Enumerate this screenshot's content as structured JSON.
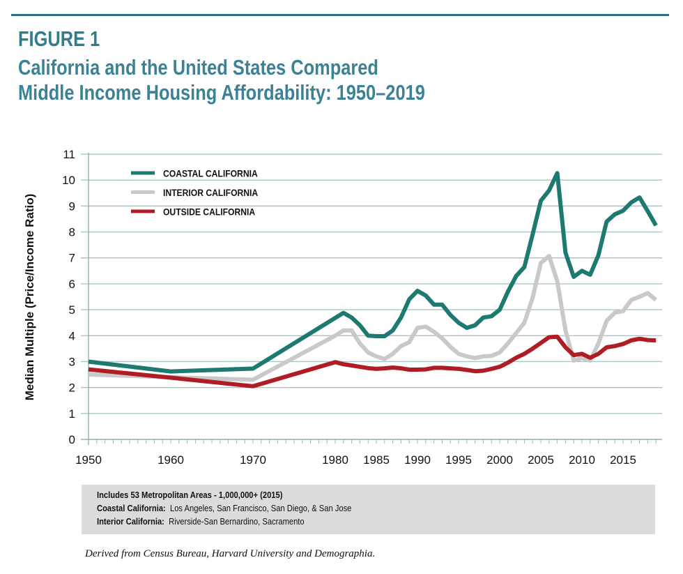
{
  "header": {
    "figure_label": "FIGURE 1",
    "title_line1": "California and the United States Compared",
    "title_line2": "Middle Income Housing Affordability: 1950–2019"
  },
  "colors": {
    "title": "#2f7d8e",
    "rule": "#2d6f80",
    "gridline": "#a9c6c6",
    "coastal": "#1e7a70",
    "interior": "#c9c9c9",
    "outside": "#b01c24"
  },
  "chart_data": {
    "type": "line",
    "title": "California and the United States Compared — Middle Income Housing Affordability: 1950–2019",
    "xlabel": "",
    "ylabel": "Median Multiple (Price/Income Ratio)",
    "ylim": [
      0,
      11
    ],
    "xlim": [
      1950,
      2019
    ],
    "yticks": [
      0,
      1,
      2,
      3,
      4,
      5,
      6,
      7,
      8,
      9,
      10,
      11
    ],
    "xtick_labels": [
      "1950",
      "1960",
      "1970",
      "1980",
      "1985",
      "1990",
      "1995",
      "2000",
      "2005",
      "2010",
      "2015"
    ],
    "grid": true,
    "legend_position": "top-left",
    "series": [
      {
        "name": "COASTAL CALIFORNIA",
        "color": "#1e7a70",
        "x": [
          1950,
          1960,
          1970,
          1981,
          1982,
          1983,
          1984,
          1985,
          1986,
          1987,
          1988,
          1989,
          1990,
          1991,
          1992,
          1993,
          1994,
          1995,
          1996,
          1997,
          1998,
          1999,
          2000,
          2001,
          2002,
          2003,
          2004,
          2005,
          2006,
          2007,
          2008,
          2009,
          2010,
          2011,
          2012,
          2013,
          2014,
          2015,
          2016,
          2017,
          2018,
          2019
        ],
        "values": [
          3.0,
          2.62,
          2.73,
          4.88,
          4.7,
          4.4,
          4.0,
          3.98,
          3.98,
          4.2,
          4.7,
          5.4,
          5.73,
          5.55,
          5.2,
          5.2,
          4.8,
          4.5,
          4.3,
          4.4,
          4.7,
          4.75,
          5.0,
          5.7,
          6.3,
          6.65,
          7.9,
          9.2,
          9.6,
          10.27,
          7.2,
          6.27,
          6.5,
          6.35,
          7.1,
          8.4,
          8.68,
          8.82,
          9.14,
          9.33,
          8.8,
          8.25
        ]
      },
      {
        "name": "INTERIOR CALIFORNIA",
        "color": "#c9c9c9",
        "x": [
          1950,
          1960,
          1970,
          1980,
          1981,
          1982,
          1983,
          1984,
          1985,
          1986,
          1987,
          1988,
          1989,
          1990,
          1991,
          1992,
          1993,
          1994,
          1995,
          1996,
          1997,
          1998,
          1999,
          2000,
          2001,
          2002,
          2003,
          2004,
          2005,
          2006,
          2007,
          2008,
          2009,
          2010,
          2011,
          2012,
          2013,
          2014,
          2015,
          2016,
          2017,
          2018,
          2019
        ],
        "values": [
          2.5,
          2.4,
          2.3,
          4.0,
          4.2,
          4.2,
          3.7,
          3.35,
          3.2,
          3.1,
          3.3,
          3.6,
          3.75,
          4.3,
          4.35,
          4.15,
          3.9,
          3.57,
          3.3,
          3.2,
          3.14,
          3.2,
          3.22,
          3.35,
          3.7,
          4.1,
          4.5,
          5.46,
          6.8,
          7.07,
          6.1,
          4.2,
          3.04,
          3.14,
          3.04,
          3.7,
          4.57,
          4.89,
          4.95,
          5.38,
          5.5,
          5.64,
          5.38
        ]
      },
      {
        "name": "OUTSIDE CALIFORNIA",
        "color": "#b01c24",
        "x": [
          1950,
          1960,
          1970,
          1980,
          1981,
          1982,
          1983,
          1984,
          1985,
          1986,
          1987,
          1988,
          1989,
          1990,
          1991,
          1992,
          1993,
          1994,
          1995,
          1996,
          1997,
          1998,
          1999,
          2000,
          2001,
          2002,
          2003,
          2004,
          2005,
          2006,
          2007,
          2008,
          2009,
          2010,
          2011,
          2012,
          2013,
          2014,
          2015,
          2016,
          2017,
          2018,
          2019
        ],
        "values": [
          2.7,
          2.38,
          2.05,
          2.98,
          2.9,
          2.85,
          2.8,
          2.75,
          2.72,
          2.74,
          2.77,
          2.74,
          2.69,
          2.69,
          2.7,
          2.76,
          2.76,
          2.74,
          2.72,
          2.68,
          2.63,
          2.65,
          2.72,
          2.8,
          2.96,
          3.15,
          3.3,
          3.5,
          3.72,
          3.94,
          3.96,
          3.55,
          3.25,
          3.3,
          3.15,
          3.3,
          3.55,
          3.6,
          3.68,
          3.82,
          3.88,
          3.83,
          3.82
        ]
      }
    ]
  },
  "footer": {
    "line1": "Includes 53 Metropolitan Areas - 1,000,000+ (2015)",
    "coastal_label": "Coastal California:",
    "coastal_text": "Los Angeles, San Francisco, San Diego, & San Jose",
    "interior_label": "Interior California:",
    "interior_text": "Riverside-San Bernardino, Sacramento"
  },
  "source": "Derived from Census Bureau, Harvard University and Demographia."
}
